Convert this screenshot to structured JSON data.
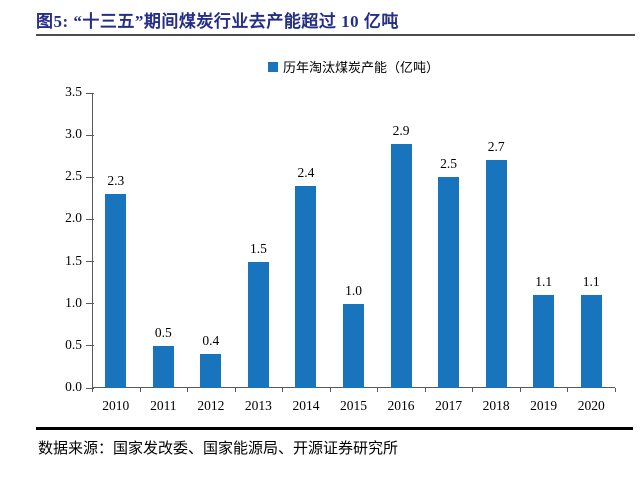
{
  "figure": {
    "title": "图5: “十三五”期间煤炭行业去产能超过 10 亿吨",
    "source": "数据来源：国家发改委、国家能源局、开源证券研究所"
  },
  "chart_data": {
    "type": "bar",
    "title": "“十三五”期间煤炭行业去产能超过 10 亿吨",
    "legend": "历年淘汰煤炭产能（亿吨）",
    "legend_position": "top-center",
    "categories": [
      "2010",
      "2011",
      "2012",
      "2013",
      "2014",
      "2015",
      "2016",
      "2017",
      "2018",
      "2019",
      "2020"
    ],
    "values": [
      2.3,
      0.5,
      0.4,
      1.5,
      2.4,
      1.0,
      2.9,
      2.5,
      2.7,
      1.1,
      1.1
    ],
    "value_labels": true,
    "xlabel": "",
    "ylabel": "",
    "ylim": [
      0,
      3.5
    ],
    "ytick_step": 0.5,
    "grid": false,
    "bar_color": "#1874BC",
    "title_color": "#252E87",
    "axis_color": "#595959",
    "text_color": "#000000"
  }
}
